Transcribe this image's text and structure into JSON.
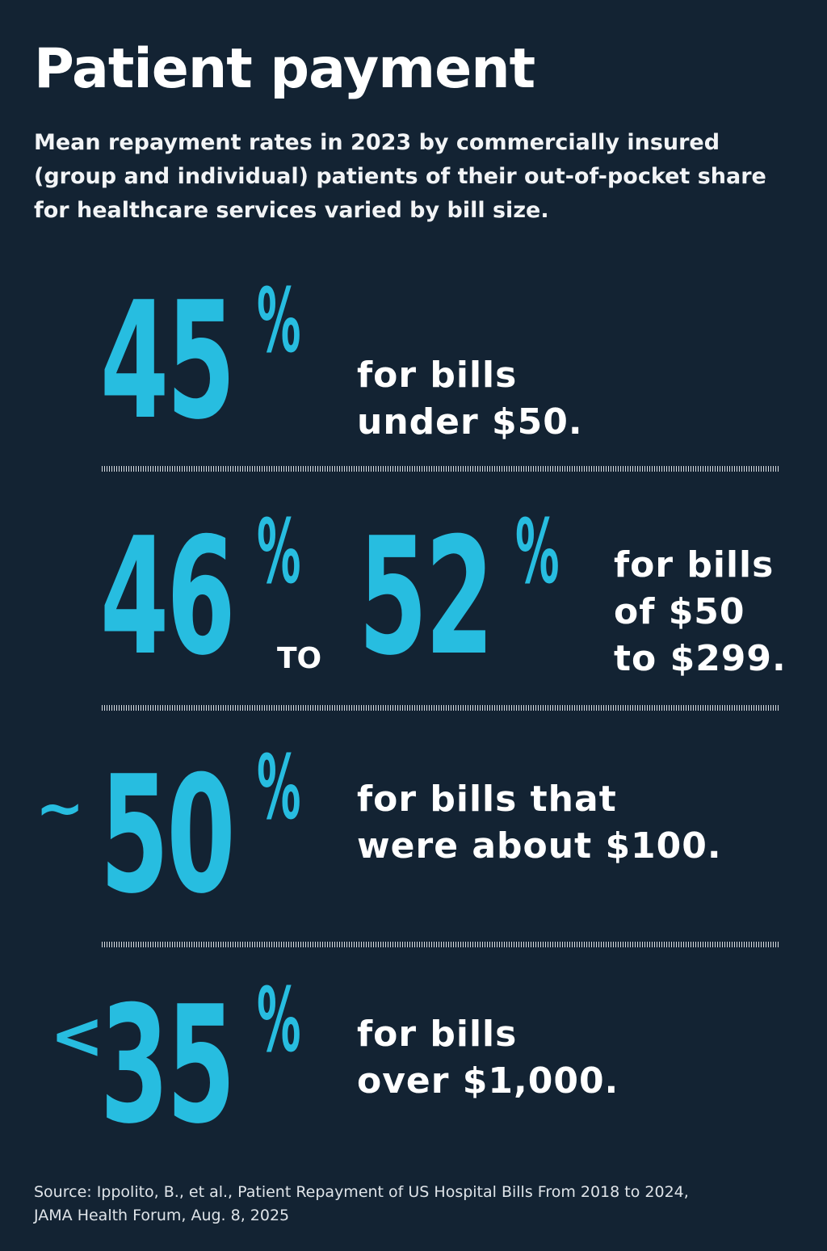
{
  "title": "Patient payment",
  "subtitle": "Mean repayment rates in 2023 by commercially insured (group and individual) patients of their out-of-pocket share for healthcare services varied by bill size.",
  "chart_data": {
    "type": "table",
    "title": "Patient payment",
    "rows": [
      {
        "prefix": "",
        "value": 45,
        "value_label": "45",
        "range_to": null,
        "range_to_label": "",
        "connector": "",
        "unit": "%",
        "text_line1": "for bills",
        "text_line2": "under $50.",
        "text_line3": ""
      },
      {
        "prefix": "",
        "value": 46,
        "value_label": "46",
        "range_to": 52,
        "range_to_label": "52",
        "connector": "TO",
        "unit": "%",
        "text_line1": "for bills",
        "text_line2": "of $50",
        "text_line3": "to $299."
      },
      {
        "prefix": "~",
        "value": 50,
        "value_label": "50",
        "range_to": null,
        "range_to_label": "",
        "connector": "",
        "unit": "%",
        "text_line1": "for bills that",
        "text_line2": "were about $100.",
        "text_line3": ""
      },
      {
        "prefix": "<",
        "value": 35,
        "value_label": "35",
        "range_to": null,
        "range_to_label": "",
        "connector": "",
        "unit": "%",
        "text_line1": "for bills",
        "text_line2": "over $1,000.",
        "text_line3": ""
      }
    ]
  },
  "source": {
    "line1": "Source: Ippolito, B., et al., Patient Repayment of US Hospital Bills From 2018 to 2024,",
    "line2": "JAMA Health Forum, Aug. 8, 2025"
  },
  "colors": {
    "background": "#132333",
    "accent": "#27bde0",
    "text": "#ffffff"
  }
}
